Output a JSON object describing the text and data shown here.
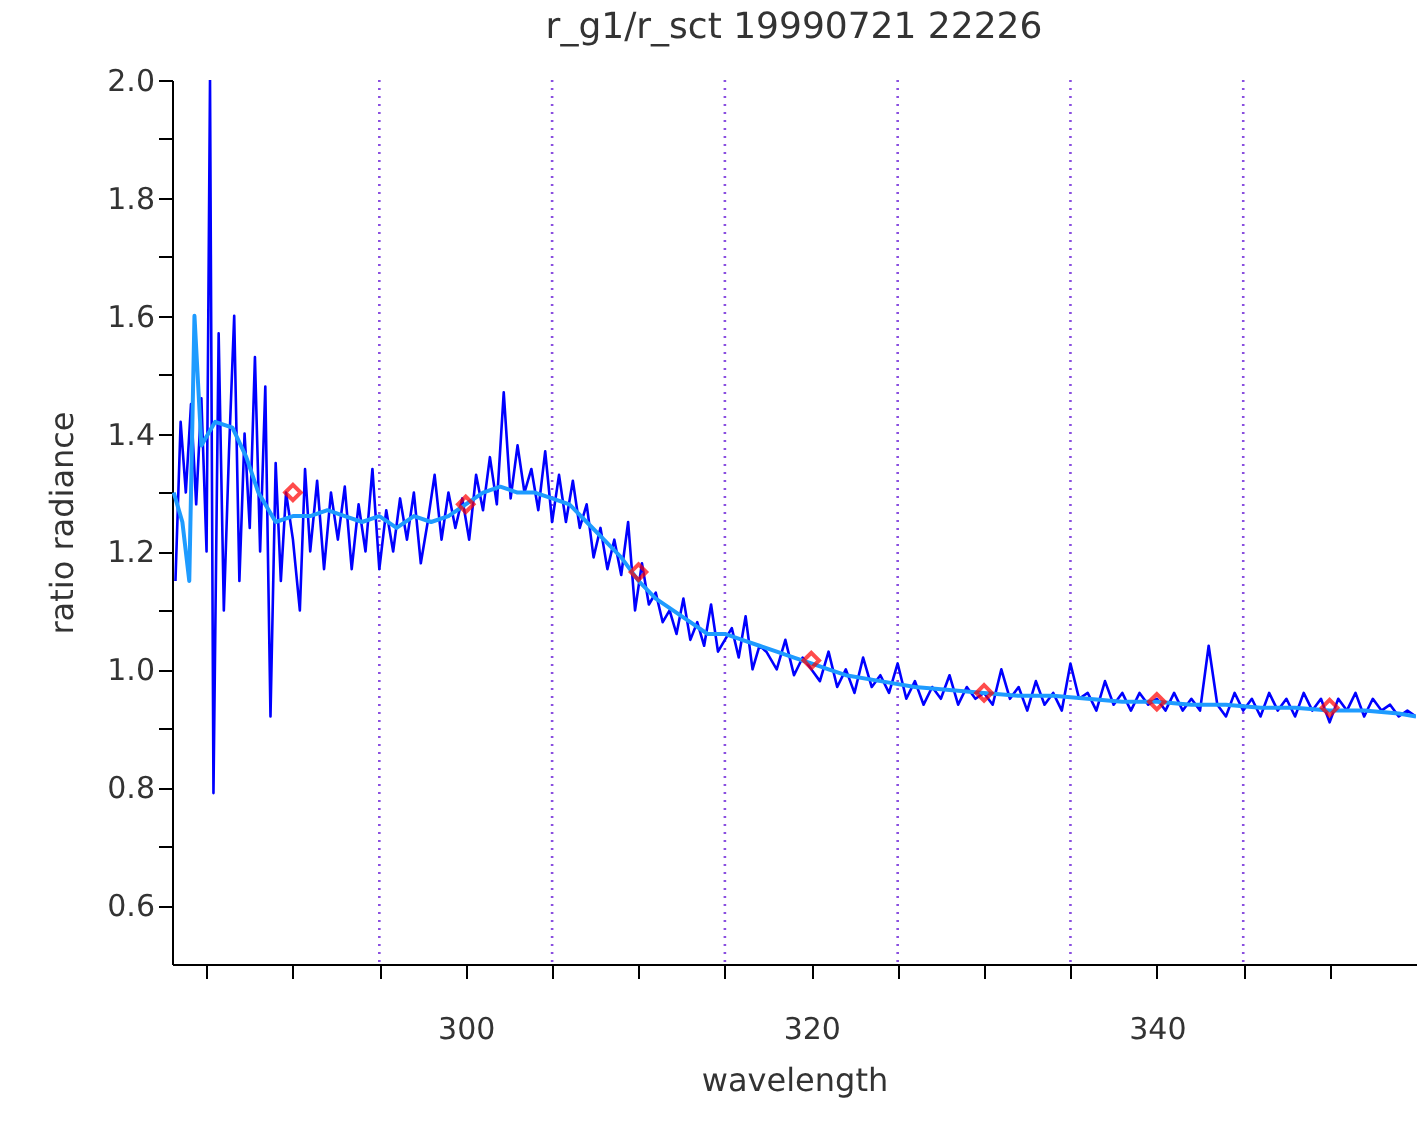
{
  "chart_data": {
    "type": "line",
    "title": "r_g1/r_sct 19990721 22226",
    "xlabel": "wavelength",
    "ylabel": "ratio radiance",
    "xlim": [
      283,
      355
    ],
    "ylim": [
      0.5,
      2.0
    ],
    "xticks": [
      {
        "value": 285,
        "label": null
      },
      {
        "value": 290,
        "label": null
      },
      {
        "value": 295,
        "label": null
      },
      300,
      {
        "value": 305,
        "label": null
      },
      {
        "value": 310,
        "label": null
      },
      {
        "value": 315,
        "label": null
      },
      320,
      {
        "value": 325,
        "label": null
      },
      {
        "value": 330,
        "label": null
      },
      {
        "value": 335,
        "label": null
      },
      340,
      {
        "value": 345,
        "label": null
      },
      {
        "value": 350,
        "label": null
      }
    ],
    "yticks": [
      0.6,
      {
        "value": 0.7,
        "label": null
      },
      0.8,
      {
        "value": 0.9,
        "label": null
      },
      {
        "value": 1.0,
        "label": "1.0"
      },
      {
        "value": 1.1,
        "label": null
      },
      1.2,
      {
        "value": 1.3,
        "label": null
      },
      1.4,
      {
        "value": 1.5,
        "label": null
      },
      1.6,
      {
        "value": 1.7,
        "label": null
      },
      1.8,
      {
        "value": 1.9,
        "label": null
      },
      {
        "value": 2.0,
        "label": "2.0"
      }
    ],
    "grid": false,
    "ref_lines": [
      {
        "axis": "x",
        "value": 295,
        "color": "#8a4fe0",
        "line_style": "dotted"
      },
      {
        "axis": "x",
        "value": 305,
        "color": "#8a4fe0",
        "line_style": "dotted"
      },
      {
        "axis": "x",
        "value": 315,
        "color": "#8a4fe0",
        "line_style": "dotted"
      },
      {
        "axis": "x",
        "value": 325,
        "color": "#8a4fe0",
        "line_style": "dotted"
      },
      {
        "axis": "x",
        "value": 335,
        "color": "#8a4fe0",
        "line_style": "dotted"
      },
      {
        "axis": "x",
        "value": 345,
        "color": "#8a4fe0",
        "line_style": "dotted"
      }
    ],
    "series": [
      {
        "type": "line",
        "color": "#0000ff",
        "marker": "none",
        "line_style": "solid",
        "x": [
          283.2,
          283.5,
          283.8,
          284.1,
          284.4,
          284.7,
          285.0,
          285.2,
          285.4,
          285.7,
          286.0,
          286.3,
          286.6,
          286.9,
          287.2,
          287.5,
          287.8,
          288.1,
          288.4,
          288.7,
          289.0,
          289.3,
          289.6,
          290.0,
          290.4,
          290.7,
          291.0,
          291.4,
          291.8,
          292.2,
          292.6,
          293.0,
          293.4,
          293.8,
          294.2,
          294.6,
          295.0,
          295.4,
          295.8,
          296.2,
          296.6,
          297.0,
          297.4,
          297.8,
          298.2,
          298.6,
          299.0,
          299.4,
          299.8,
          300.2,
          300.6,
          301.0,
          301.4,
          301.8,
          302.2,
          302.6,
          303.0,
          303.4,
          303.8,
          304.2,
          304.6,
          305.0,
          305.4,
          305.8,
          306.2,
          306.6,
          307.0,
          307.4,
          307.8,
          308.2,
          308.6,
          309.0,
          309.4,
          309.8,
          310.2,
          310.6,
          311.0,
          311.4,
          311.8,
          312.2,
          312.6,
          313.0,
          313.4,
          313.8,
          314.2,
          314.6,
          315.0,
          315.4,
          315.8,
          316.2,
          316.6,
          317.0,
          317.4,
          318.0,
          318.5,
          319.0,
          319.5,
          320.0,
          320.5,
          321.0,
          321.5,
          322.0,
          322.5,
          323.0,
          323.5,
          324.0,
          324.5,
          325.0,
          325.5,
          326.0,
          326.5,
          327.0,
          327.5,
          328.0,
          328.5,
          329.0,
          329.5,
          330.0,
          330.5,
          331.0,
          331.5,
          332.0,
          332.5,
          333.0,
          333.5,
          334.0,
          334.5,
          335.0,
          335.5,
          336.0,
          336.5,
          337.0,
          337.5,
          338.0,
          338.5,
          339.0,
          339.5,
          340.0,
          340.5,
          341.0,
          341.5,
          342.0,
          342.5,
          343.0,
          343.5,
          344.0,
          344.5,
          345.0,
          345.5,
          346.0,
          346.5,
          347.0,
          347.5,
          348.0,
          348.5,
          349.0,
          349.5,
          350.0,
          350.5,
          351.0,
          351.5,
          352.0,
          352.5,
          353.0,
          353.5,
          354.0,
          354.5,
          355.0
        ],
        "values": [
          1.15,
          1.42,
          1.3,
          1.45,
          1.28,
          1.46,
          1.2,
          2.0,
          0.79,
          1.57,
          1.1,
          1.37,
          1.6,
          1.15,
          1.4,
          1.24,
          1.53,
          1.2,
          1.48,
          0.92,
          1.35,
          1.15,
          1.3,
          1.22,
          1.1,
          1.34,
          1.2,
          1.32,
          1.17,
          1.3,
          1.22,
          1.31,
          1.17,
          1.28,
          1.2,
          1.34,
          1.17,
          1.27,
          1.2,
          1.29,
          1.22,
          1.3,
          1.18,
          1.25,
          1.33,
          1.22,
          1.3,
          1.24,
          1.29,
          1.22,
          1.33,
          1.27,
          1.36,
          1.28,
          1.47,
          1.29,
          1.38,
          1.3,
          1.34,
          1.27,
          1.37,
          1.25,
          1.33,
          1.25,
          1.32,
          1.24,
          1.28,
          1.19,
          1.24,
          1.17,
          1.22,
          1.16,
          1.25,
          1.1,
          1.18,
          1.11,
          1.13,
          1.08,
          1.1,
          1.06,
          1.12,
          1.05,
          1.08,
          1.04,
          1.11,
          1.03,
          1.05,
          1.07,
          1.02,
          1.09,
          1.0,
          1.04,
          1.03,
          1.0,
          1.05,
          0.99,
          1.02,
          1.0,
          0.98,
          1.03,
          0.97,
          1.0,
          0.96,
          1.02,
          0.97,
          0.99,
          0.96,
          1.01,
          0.95,
          0.98,
          0.94,
          0.97,
          0.95,
          0.99,
          0.94,
          0.97,
          0.95,
          0.96,
          0.94,
          1.0,
          0.95,
          0.97,
          0.93,
          0.98,
          0.94,
          0.96,
          0.93,
          1.01,
          0.95,
          0.96,
          0.93,
          0.98,
          0.94,
          0.96,
          0.93,
          0.96,
          0.94,
          0.95,
          0.93,
          0.96,
          0.93,
          0.95,
          0.93,
          1.04,
          0.94,
          0.92,
          0.96,
          0.93,
          0.95,
          0.92,
          0.96,
          0.93,
          0.95,
          0.92,
          0.96,
          0.93,
          0.95,
          0.91,
          0.95,
          0.93,
          0.96,
          0.92,
          0.95,
          0.93,
          0.94,
          0.92,
          0.93,
          0.92
        ]
      },
      {
        "type": "line",
        "color": "#1e9bff",
        "marker": "none",
        "line_style": "solid",
        "x": [
          283.1,
          283.6,
          284.0,
          284.3,
          284.7,
          285.5,
          286.5,
          287.3,
          288.0,
          289.0,
          290.0,
          291.0,
          292.0,
          293.0,
          294.0,
          295.0,
          296.0,
          297.0,
          298.0,
          299.0,
          300.0,
          301.0,
          302.0,
          303.0,
          304.0,
          305.0,
          306.0,
          307.0,
          308.0,
          309.0,
          310.0,
          311.0,
          312.0,
          313.0,
          314.0,
          315.0,
          316.0,
          317.0,
          318.0,
          319.0,
          320.0,
          321.0,
          322.0,
          324.0,
          326.0,
          328.0,
          330.0,
          332.0,
          334.0,
          336.0,
          338.0,
          340.0,
          342.0,
          344.0,
          346.0,
          348.0,
          350.0,
          352.0,
          354.0,
          355.0
        ],
        "values": [
          1.3,
          1.25,
          1.15,
          1.6,
          1.38,
          1.42,
          1.41,
          1.36,
          1.3,
          1.25,
          1.26,
          1.26,
          1.27,
          1.26,
          1.25,
          1.26,
          1.24,
          1.26,
          1.25,
          1.26,
          1.28,
          1.3,
          1.31,
          1.3,
          1.3,
          1.29,
          1.28,
          1.25,
          1.22,
          1.19,
          1.15,
          1.12,
          1.1,
          1.08,
          1.06,
          1.06,
          1.05,
          1.04,
          1.03,
          1.02,
          1.01,
          1.0,
          0.99,
          0.98,
          0.97,
          0.965,
          0.96,
          0.955,
          0.955,
          0.95,
          0.945,
          0.945,
          0.94,
          0.94,
          0.935,
          0.935,
          0.93,
          0.93,
          0.925,
          0.92
        ]
      },
      {
        "type": "scatter",
        "color": "#ff0000",
        "marker": "diamond",
        "x": [
          290,
          300,
          310,
          320,
          330,
          340,
          350
        ],
        "values": [
          1.3,
          1.28,
          1.165,
          1.015,
          0.96,
          0.945,
          0.935
        ]
      }
    ]
  }
}
